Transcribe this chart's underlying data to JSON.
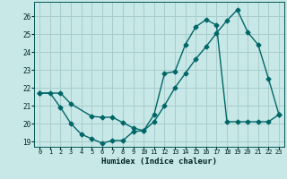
{
  "xlabel": "Humidex (Indice chaleur)",
  "ylabel": "",
  "bg_color": "#c8e8e8",
  "grid_color": "#a8cccc",
  "line_color": "#006666",
  "xlim": [
    -0.5,
    23.5
  ],
  "ylim": [
    18.7,
    26.8
  ],
  "xticks": [
    0,
    1,
    2,
    3,
    4,
    5,
    6,
    7,
    8,
    9,
    10,
    11,
    12,
    13,
    14,
    15,
    16,
    17,
    18,
    19,
    20,
    21,
    22,
    23
  ],
  "yticks": [
    19,
    20,
    21,
    22,
    23,
    24,
    25,
    26
  ],
  "line1_x": [
    0,
    1,
    2,
    3,
    4,
    5,
    6,
    7,
    8,
    9,
    10,
    11,
    12,
    13,
    14,
    15,
    16,
    17,
    18,
    19,
    20,
    21,
    22,
    23
  ],
  "line1_y": [
    21.7,
    21.7,
    20.9,
    20.0,
    19.4,
    19.15,
    18.9,
    19.05,
    19.05,
    19.55,
    19.6,
    20.5,
    22.8,
    22.9,
    24.4,
    25.4,
    25.8,
    25.5,
    20.1,
    20.1,
    20.1,
    20.1,
    20.1,
    20.5
  ],
  "line2_x": [
    0,
    2,
    3,
    5,
    6,
    7,
    8,
    9,
    10,
    11,
    12,
    13,
    14,
    15,
    16,
    17,
    18,
    19,
    20,
    21,
    22,
    23
  ],
  "line2_y": [
    21.7,
    21.7,
    21.1,
    20.4,
    20.35,
    20.35,
    20.05,
    19.75,
    19.6,
    20.1,
    21.0,
    22.0,
    22.8,
    23.6,
    24.3,
    25.05,
    25.75,
    26.35,
    25.1,
    24.4,
    22.5,
    20.5
  ]
}
